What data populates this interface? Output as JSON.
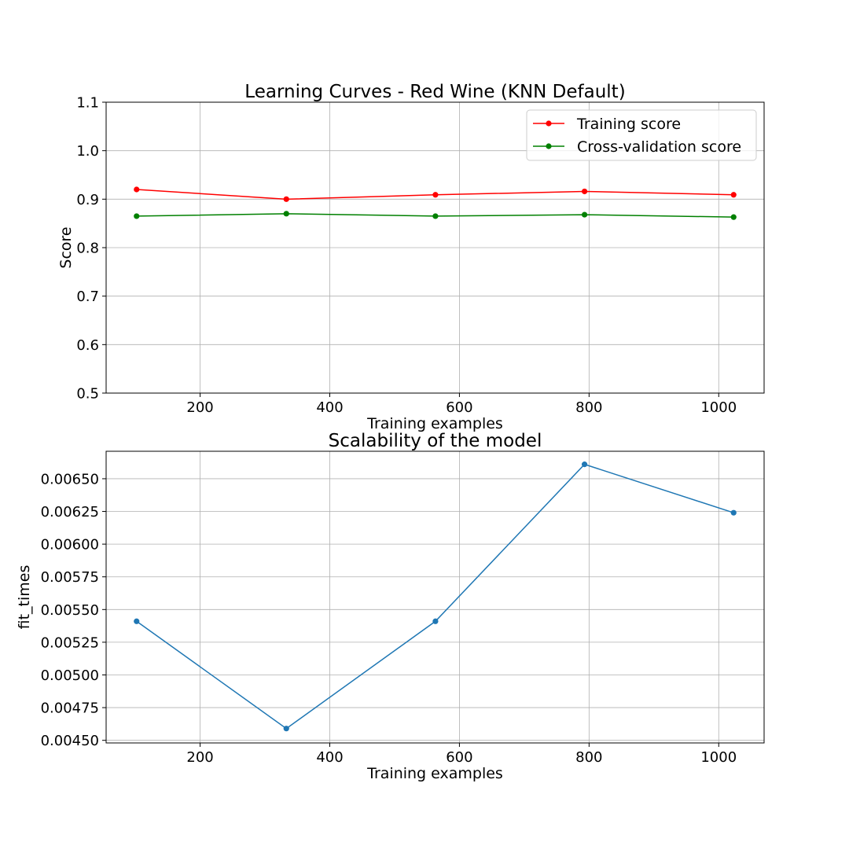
{
  "colors": {
    "training": "#ff0000",
    "cross_validation": "#008000",
    "fit_times": "#1f77b4",
    "grid": "#b0b0b0",
    "axes": "#000000",
    "legend_border": "#cccccc"
  },
  "chart_data": [
    {
      "type": "line",
      "title": "Learning Curves - Red Wine (KNN Default)",
      "xlabel": "Training examples",
      "ylabel": "Score",
      "xlim": [
        55,
        1070
      ],
      "ylim": [
        0.5,
        1.1
      ],
      "xticks": [
        200,
        400,
        600,
        800,
        1000
      ],
      "xtick_labels": [
        "200",
        "400",
        "600",
        "800",
        "1000"
      ],
      "yticks": [
        0.5,
        0.6,
        0.7,
        0.8,
        0.9,
        1.0,
        1.1
      ],
      "ytick_labels": [
        "0.5",
        "0.6",
        "0.7",
        "0.8",
        "0.9",
        "1.0",
        "1.1"
      ],
      "grid": true,
      "legend_position": "top-right",
      "x": [
        102,
        333,
        563,
        793,
        1023
      ],
      "series": [
        {
          "name": "Training score",
          "color_key": "training",
          "values": [
            0.92,
            0.9,
            0.909,
            0.916,
            0.909
          ]
        },
        {
          "name": "Cross-validation score",
          "color_key": "cross_validation",
          "values": [
            0.865,
            0.87,
            0.865,
            0.868,
            0.863
          ]
        }
      ]
    },
    {
      "type": "line",
      "title": "Scalability of the model",
      "xlabel": "Training examples",
      "ylabel": "fit_times",
      "xlim": [
        55,
        1070
      ],
      "ylim": [
        0.00448,
        0.00671
      ],
      "xticks": [
        200,
        400,
        600,
        800,
        1000
      ],
      "xtick_labels": [
        "200",
        "400",
        "600",
        "800",
        "1000"
      ],
      "yticks": [
        0.0045,
        0.00475,
        0.005,
        0.00525,
        0.0055,
        0.00575,
        0.006,
        0.00625,
        0.0065
      ],
      "ytick_labels": [
        "0.00450",
        "0.00475",
        "0.00500",
        "0.00525",
        "0.00550",
        "0.00575",
        "0.00600",
        "0.00625",
        "0.00650"
      ],
      "grid": true,
      "x": [
        102,
        333,
        563,
        793,
        1023
      ],
      "series": [
        {
          "color_key": "fit_times",
          "values": [
            0.00541,
            0.00459,
            0.00541,
            0.00661,
            0.00624
          ]
        }
      ]
    }
  ]
}
